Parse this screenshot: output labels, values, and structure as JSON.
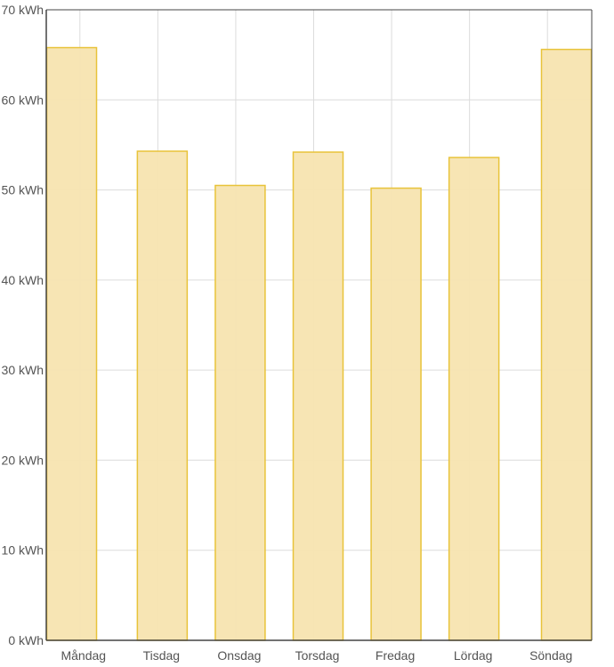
{
  "chart_data": {
    "type": "bar",
    "categories": [
      "Måndag",
      "Tisdag",
      "Onsdag",
      "Torsdag",
      "Fredag",
      "Lördag",
      "Söndag"
    ],
    "values": [
      65.8,
      54.3,
      50.5,
      54.2,
      50.2,
      53.6,
      65.6
    ],
    "unit": "kWh",
    "ylim": [
      0,
      70
    ],
    "yticks": [
      0,
      10,
      20,
      30,
      40,
      50,
      60,
      70
    ],
    "ytick_labels": [
      "0 kWh",
      "10 kWh",
      "20 kWh",
      "30 kWh",
      "40 kWh",
      "50 kWh",
      "60 kWh",
      "70 kWh"
    ],
    "grid": true,
    "colors": {
      "bar_fill": "#f7e4b0",
      "bar_stroke": "#e8c33a",
      "grid": "#dcdcdc",
      "axis": "#444444",
      "text": "#545454"
    }
  }
}
